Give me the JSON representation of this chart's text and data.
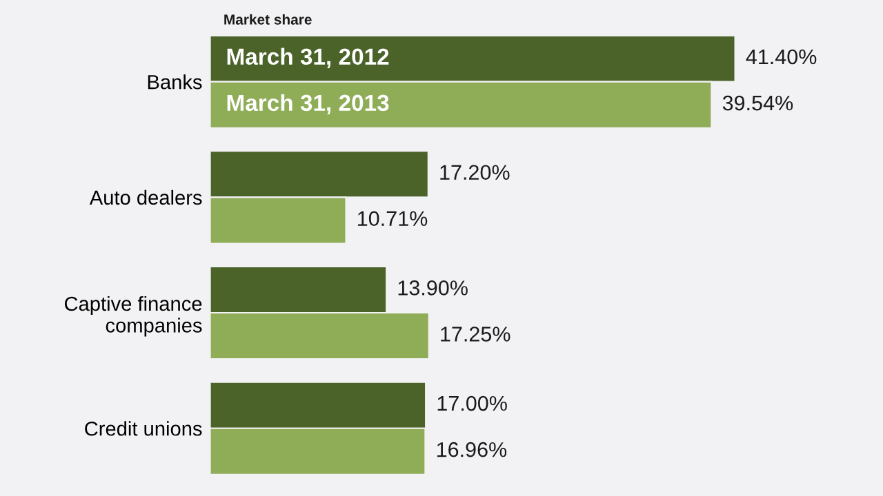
{
  "chart_data": {
    "type": "bar",
    "orientation": "horizontal",
    "title": "Market share",
    "categories": [
      "Banks",
      "Auto dealers",
      "Captive finance\ncompanies",
      "Credit unions"
    ],
    "series": [
      {
        "name": "March 31, 2012",
        "color": "#4b6329",
        "values": [
          41.4,
          17.2,
          13.9,
          17.0
        ],
        "value_labels": [
          "41.40%",
          "17.20%",
          "13.90%",
          "17.00%"
        ]
      },
      {
        "name": "March 31, 2013",
        "color": "#8fac57",
        "values": [
          39.54,
          10.71,
          17.25,
          16.96
        ],
        "value_labels": [
          "39.54%",
          "10.71%",
          "17.25%",
          "16.96%"
        ]
      }
    ],
    "grid": false,
    "legend": false,
    "tick_labels": "y"
  }
}
